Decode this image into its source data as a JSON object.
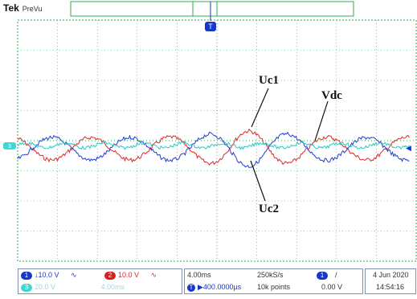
{
  "header": {
    "brand": "Tek",
    "mode": "PreVu",
    "trigger_marker": "T"
  },
  "traces": {
    "uc1": {
      "label": "Uc1",
      "color": "#1f3fd0"
    },
    "uc2": {
      "label": "Uc2",
      "color": "#e02828"
    },
    "vdc": {
      "label": "Vdc",
      "color": "#28c8c8"
    }
  },
  "channel_markers": {
    "ch_cyan": "3",
    "ch_right": "◀"
  },
  "status_bar": {
    "ch1": {
      "badge": "1",
      "scale": "↓10.0 V",
      "coupling": "∿"
    },
    "ch2": {
      "badge": "2",
      "scale": "10.0 V",
      "coupling": "∿"
    },
    "ch3": {
      "badge": "3",
      "scale": "20.0 V",
      "extra": "4.00ms"
    },
    "timebase": "4.00ms",
    "position": "▶400.0000µs",
    "sample_rate": "250kS/s",
    "record_length": "10k points",
    "trigger_source": "1",
    "trigger_slope": "/",
    "trigger_level": "0.00 V",
    "date": "4 Jun 2020",
    "time": "14:54:16"
  },
  "colors": {
    "grid": "#2fae57",
    "uc1": "#1f3fd0",
    "uc2": "#e02828",
    "vdc": "#28c8c8"
  }
}
